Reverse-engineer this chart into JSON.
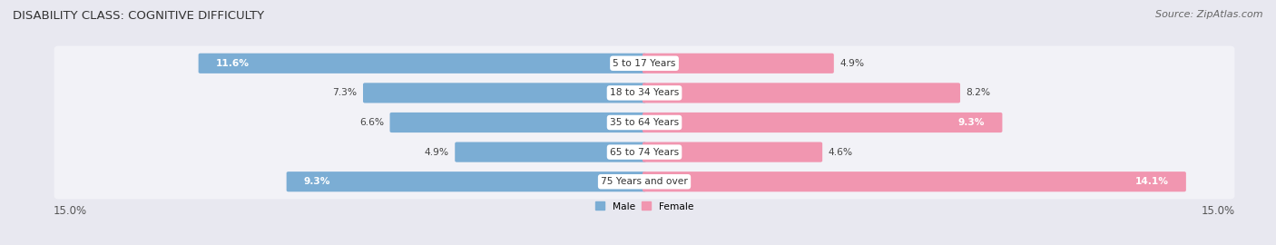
{
  "title": "DISABILITY CLASS: COGNITIVE DIFFICULTY",
  "source": "Source: ZipAtlas.com",
  "categories": [
    "5 to 17 Years",
    "18 to 34 Years",
    "35 to 64 Years",
    "65 to 74 Years",
    "75 Years and over"
  ],
  "male_values": [
    11.6,
    7.3,
    6.6,
    4.9,
    9.3
  ],
  "female_values": [
    4.9,
    8.2,
    9.3,
    4.6,
    14.1
  ],
  "male_color": "#7badd4",
  "female_color": "#f196b0",
  "male_label": "Male",
  "female_label": "Female",
  "max_value": 15.0,
  "bg_color": "#e8e8f0",
  "row_bg_color": "#f2f2f7",
  "title_fontsize": 9.5,
  "label_fontsize": 8,
  "tick_fontsize": 8.5,
  "source_fontsize": 8
}
